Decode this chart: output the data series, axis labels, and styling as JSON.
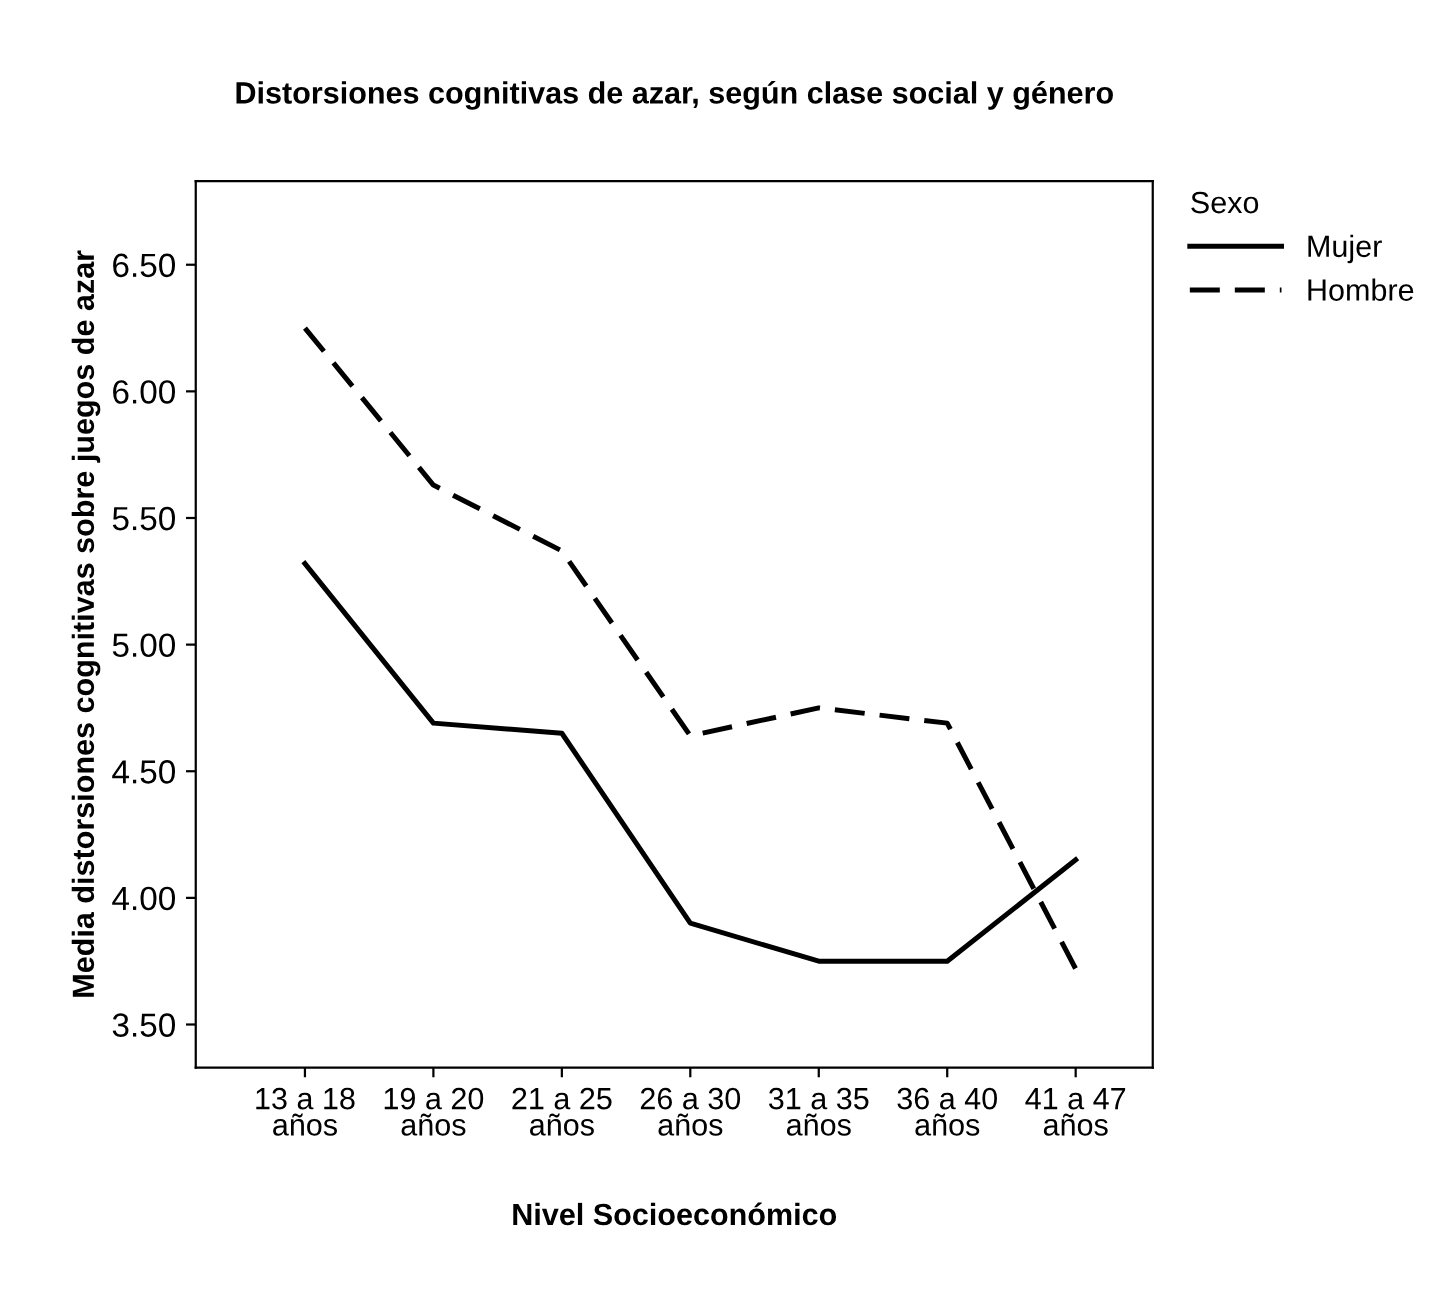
{
  "chart_data": {
    "type": "line",
    "title": "Distorsiones cognitivas de azar, según clase social y género",
    "xlabel": "Nivel Socioeconómico",
    "ylabel": "Media distorsiones cognitivas sobre juegos de azar",
    "legend_title": "Sexo",
    "legend": "top right",
    "grid": false,
    "marker": "none",
    "categories": [
      "13 a 18\naños",
      "19 a 20\naños",
      "21 a 25\naños",
      "26 a 30\naños",
      "31 a 35\naños",
      "36 a 40\naños",
      "41 a 47\naños"
    ],
    "ylim": [
      3.33,
      6.83
    ],
    "yticks": [
      {
        "value": 3.5,
        "label": "3.50"
      },
      {
        "value": 4.0,
        "label": "4.00"
      },
      {
        "value": 4.5,
        "label": "4.50"
      },
      {
        "value": 5.0,
        "label": "5.00"
      },
      {
        "value": 5.5,
        "label": "5.50"
      },
      {
        "value": 6.0,
        "label": "6.00"
      },
      {
        "value": 6.5,
        "label": "6.50"
      }
    ],
    "series": [
      {
        "name": "Mujer",
        "color": "#000000",
        "line_style": "solid",
        "values": [
          5.32,
          4.69,
          4.65,
          3.9,
          3.75,
          3.75,
          4.15
        ]
      },
      {
        "name": "Hombre",
        "color": "#000000",
        "line_style": "dashed",
        "values": [
          6.25,
          5.63,
          5.37,
          4.64,
          4.75,
          4.69,
          3.72
        ]
      }
    ]
  }
}
